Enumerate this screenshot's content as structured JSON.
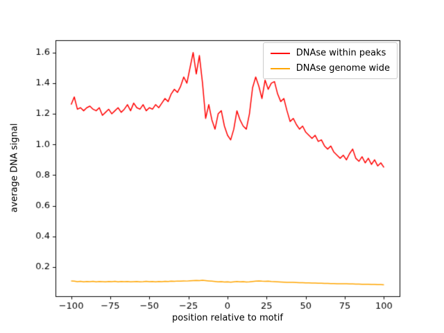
{
  "figure": {
    "background": "#ffffff",
    "axes_edge_color": "#000000",
    "legend_border_color": "#cccccc"
  },
  "chart_data": {
    "type": "line",
    "title": "",
    "xlabel": "position relative to motif",
    "ylabel": "average DNA signal",
    "xlim": [
      -110,
      110
    ],
    "ylim": [
      0.01,
      1.68
    ],
    "grid": false,
    "legend_position": "upper right",
    "xtick_values": [
      -100,
      -75,
      -50,
      -25,
      0,
      25,
      50,
      75,
      100
    ],
    "xtick_labels": [
      "−100",
      "−75",
      "−50",
      "−25",
      "0",
      "25",
      "50",
      "75",
      "100"
    ],
    "ytick_values": [
      0.2,
      0.4,
      0.6,
      0.8,
      1.0,
      1.2,
      1.4,
      1.6
    ],
    "ytick_labels": [
      "0.2",
      "0.4",
      "0.6",
      "0.8",
      "1.0",
      "1.2",
      "1.4",
      "1.6"
    ],
    "x": [
      -100,
      -98,
      -96,
      -94,
      -92,
      -90,
      -88,
      -86,
      -84,
      -82,
      -80,
      -78,
      -76,
      -74,
      -72,
      -70,
      -68,
      -66,
      -64,
      -62,
      -60,
      -58,
      -56,
      -54,
      -52,
      -50,
      -48,
      -46,
      -44,
      -42,
      -40,
      -38,
      -36,
      -34,
      -32,
      -30,
      -28,
      -26,
      -24,
      -22,
      -20,
      -18,
      -16,
      -14,
      -12,
      -10,
      -8,
      -6,
      -4,
      -2,
      0,
      2,
      4,
      6,
      8,
      10,
      12,
      14,
      16,
      18,
      20,
      22,
      24,
      26,
      28,
      30,
      32,
      34,
      36,
      38,
      40,
      42,
      44,
      46,
      48,
      50,
      52,
      54,
      56,
      58,
      60,
      62,
      64,
      66,
      68,
      70,
      72,
      74,
      76,
      78,
      80,
      82,
      84,
      86,
      88,
      90,
      92,
      94,
      96,
      98,
      100
    ],
    "series": [
      {
        "name": "DNAse within peaks",
        "color": "#ff0000",
        "values": [
          1.26,
          1.31,
          1.23,
          1.24,
          1.22,
          1.24,
          1.25,
          1.23,
          1.22,
          1.24,
          1.19,
          1.21,
          1.23,
          1.2,
          1.22,
          1.24,
          1.21,
          1.23,
          1.26,
          1.22,
          1.27,
          1.24,
          1.23,
          1.26,
          1.22,
          1.24,
          1.23,
          1.26,
          1.24,
          1.27,
          1.3,
          1.28,
          1.33,
          1.36,
          1.34,
          1.38,
          1.44,
          1.4,
          1.5,
          1.6,
          1.46,
          1.58,
          1.4,
          1.17,
          1.26,
          1.16,
          1.1,
          1.2,
          1.22,
          1.12,
          1.06,
          1.03,
          1.1,
          1.22,
          1.16,
          1.12,
          1.1,
          1.2,
          1.37,
          1.44,
          1.38,
          1.3,
          1.42,
          1.36,
          1.4,
          1.41,
          1.33,
          1.28,
          1.3,
          1.22,
          1.15,
          1.17,
          1.13,
          1.1,
          1.12,
          1.08,
          1.06,
          1.04,
          1.06,
          1.02,
          1.03,
          0.99,
          0.97,
          0.99,
          0.95,
          0.93,
          0.91,
          0.93,
          0.9,
          0.94,
          0.97,
          0.91,
          0.89,
          0.92,
          0.88,
          0.91,
          0.87,
          0.9,
          0.86,
          0.88,
          0.85
        ]
      },
      {
        "name": "DNAse genome wide",
        "color": "#ffa500",
        "values": [
          0.11,
          0.108,
          0.105,
          0.107,
          0.104,
          0.106,
          0.105,
          0.107,
          0.104,
          0.106,
          0.105,
          0.104,
          0.106,
          0.105,
          0.107,
          0.104,
          0.106,
          0.105,
          0.106,
          0.104,
          0.105,
          0.106,
          0.104,
          0.105,
          0.107,
          0.105,
          0.106,
          0.104,
          0.106,
          0.105,
          0.107,
          0.106,
          0.108,
          0.107,
          0.109,
          0.108,
          0.11,
          0.109,
          0.111,
          0.112,
          0.113,
          0.112,
          0.114,
          0.112,
          0.11,
          0.108,
          0.106,
          0.104,
          0.105,
          0.103,
          0.104,
          0.102,
          0.104,
          0.106,
          0.104,
          0.105,
          0.103,
          0.104,
          0.106,
          0.108,
          0.11,
          0.108,
          0.107,
          0.108,
          0.106,
          0.105,
          0.104,
          0.103,
          0.102,
          0.101,
          0.1,
          0.1,
          0.099,
          0.098,
          0.098,
          0.097,
          0.097,
          0.096,
          0.096,
          0.095,
          0.095,
          0.094,
          0.094,
          0.093,
          0.093,
          0.092,
          0.092,
          0.091,
          0.091,
          0.09,
          0.09,
          0.089,
          0.089,
          0.088,
          0.088,
          0.088,
          0.087,
          0.087,
          0.086,
          0.086,
          0.085
        ]
      }
    ]
  }
}
